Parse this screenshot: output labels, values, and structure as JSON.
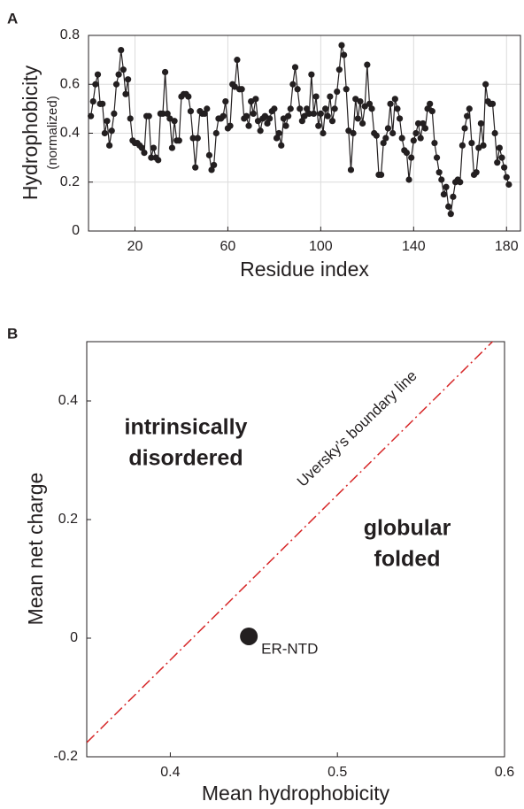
{
  "chart_data": [
    {
      "type": "line",
      "panel_label": "A",
      "ylabel": "Hydrophobicity",
      "ylabel_sub": "(normalized)",
      "xlabel": "Residue index",
      "xlim": [
        0,
        186
      ],
      "xticks": [
        20,
        60,
        100,
        140,
        180
      ],
      "ylim": [
        0,
        0.8
      ],
      "yticks": [
        0,
        0.2,
        0.4,
        0.6,
        0.8
      ],
      "grid": true,
      "series": [
        {
          "color": "#231f20",
          "x": [
            1,
            2,
            3,
            4,
            5,
            6,
            7,
            8,
            9,
            10,
            11,
            12,
            13,
            14,
            15,
            16,
            17,
            18,
            19,
            20,
            21,
            22,
            23,
            24,
            25,
            26,
            27,
            28,
            29,
            30,
            31,
            32,
            33,
            34,
            35,
            36,
            37,
            38,
            39,
            40,
            41,
            42,
            43,
            44,
            45,
            46,
            47,
            48,
            49,
            50,
            51,
            52,
            53,
            54,
            55,
            56,
            57,
            58,
            59,
            60,
            61,
            62,
            63,
            64,
            65,
            66,
            67,
            68,
            69,
            70,
            71,
            72,
            73,
            74,
            75,
            76,
            77,
            78,
            79,
            80,
            81,
            82,
            83,
            84,
            85,
            86,
            87,
            88,
            89,
            90,
            91,
            92,
            93,
            94,
            95,
            96,
            97,
            98,
            99,
            100,
            101,
            102,
            103,
            104,
            105,
            106,
            107,
            108,
            109,
            110,
            111,
            112,
            113,
            114,
            115,
            116,
            117,
            118,
            119,
            120,
            121,
            122,
            123,
            124,
            125,
            126,
            127,
            128,
            129,
            130,
            131,
            132,
            133,
            134,
            135,
            136,
            137,
            138,
            139,
            140,
            141,
            142,
            143,
            144,
            145,
            146,
            147,
            148,
            149,
            150,
            151,
            152,
            153,
            154,
            155,
            156,
            157,
            158,
            159,
            160,
            161,
            162,
            163,
            164,
            165,
            166,
            167,
            168,
            169,
            170,
            171,
            172,
            173,
            174,
            175,
            176,
            177,
            178,
            179,
            180,
            181
          ],
          "values": [
            0.47,
            0.53,
            0.6,
            0.64,
            0.52,
            0.52,
            0.4,
            0.45,
            0.35,
            0.41,
            0.48,
            0.6,
            0.64,
            0.74,
            0.66,
            0.56,
            0.62,
            0.46,
            0.37,
            0.36,
            0.36,
            0.35,
            0.34,
            0.32,
            0.47,
            0.47,
            0.3,
            0.34,
            0.3,
            0.29,
            0.48,
            0.48,
            0.65,
            0.48,
            0.46,
            0.34,
            0.45,
            0.37,
            0.37,
            0.55,
            0.56,
            0.56,
            0.55,
            0.49,
            0.38,
            0.26,
            0.38,
            0.49,
            0.48,
            0.48,
            0.5,
            0.31,
            0.25,
            0.27,
            0.4,
            0.46,
            0.46,
            0.47,
            0.53,
            0.42,
            0.43,
            0.6,
            0.59,
            0.7,
            0.58,
            0.58,
            0.46,
            0.47,
            0.43,
            0.53,
            0.48,
            0.54,
            0.45,
            0.41,
            0.46,
            0.47,
            0.44,
            0.46,
            0.49,
            0.5,
            0.38,
            0.4,
            0.35,
            0.46,
            0.43,
            0.47,
            0.5,
            0.6,
            0.67,
            0.58,
            0.5,
            0.45,
            0.47,
            0.5,
            0.48,
            0.64,
            0.48,
            0.55,
            0.43,
            0.48,
            0.4,
            0.5,
            0.47,
            0.55,
            0.45,
            0.5,
            0.57,
            0.66,
            0.76,
            0.72,
            0.58,
            0.41,
            0.25,
            0.4,
            0.54,
            0.46,
            0.53,
            0.44,
            0.51,
            0.68,
            0.52,
            0.5,
            0.4,
            0.39,
            0.23,
            0.23,
            0.36,
            0.38,
            0.42,
            0.52,
            0.4,
            0.54,
            0.5,
            0.46,
            0.38,
            0.33,
            0.32,
            0.21,
            0.3,
            0.37,
            0.4,
            0.44,
            0.38,
            0.44,
            0.42,
            0.5,
            0.52,
            0.49,
            0.36,
            0.3,
            0.24,
            0.21,
            0.15,
            0.18,
            0.1,
            0.07,
            0.14,
            0.2,
            0.21,
            0.2,
            0.35,
            0.42,
            0.47,
            0.5,
            0.36,
            0.23,
            0.24,
            0.34,
            0.44,
            0.35,
            0.6,
            0.53,
            0.52,
            0.52,
            0.4,
            0.28,
            0.34,
            0.3,
            0.26,
            0.22,
            0.19
          ]
        }
      ]
    },
    {
      "type": "scatter",
      "panel_label": "B",
      "ylabel": "Mean net charge",
      "xlabel": "Mean hydrophobicity",
      "xlim": [
        0.35,
        0.6
      ],
      "xticks": [
        0.4,
        0.5,
        0.6
      ],
      "ylim": [
        -0.2,
        0.5
      ],
      "yticks": [
        -0.2,
        0,
        0.2,
        0.4
      ],
      "grid": false,
      "series": [
        {
          "name": "ER-NTD",
          "color": "#231f20",
          "x": [
            0.447
          ],
          "values": [
            0.003
          ]
        }
      ],
      "boundary_line": {
        "label": "Uversky’s boundary line",
        "color": "#d62728",
        "x": [
          0.35,
          0.6
        ],
        "values": [
          -0.176,
          0.52
        ]
      },
      "region_labels": [
        [
          "intrinsically",
          "disordered"
        ],
        [
          "globular",
          "folded"
        ]
      ]
    }
  ]
}
